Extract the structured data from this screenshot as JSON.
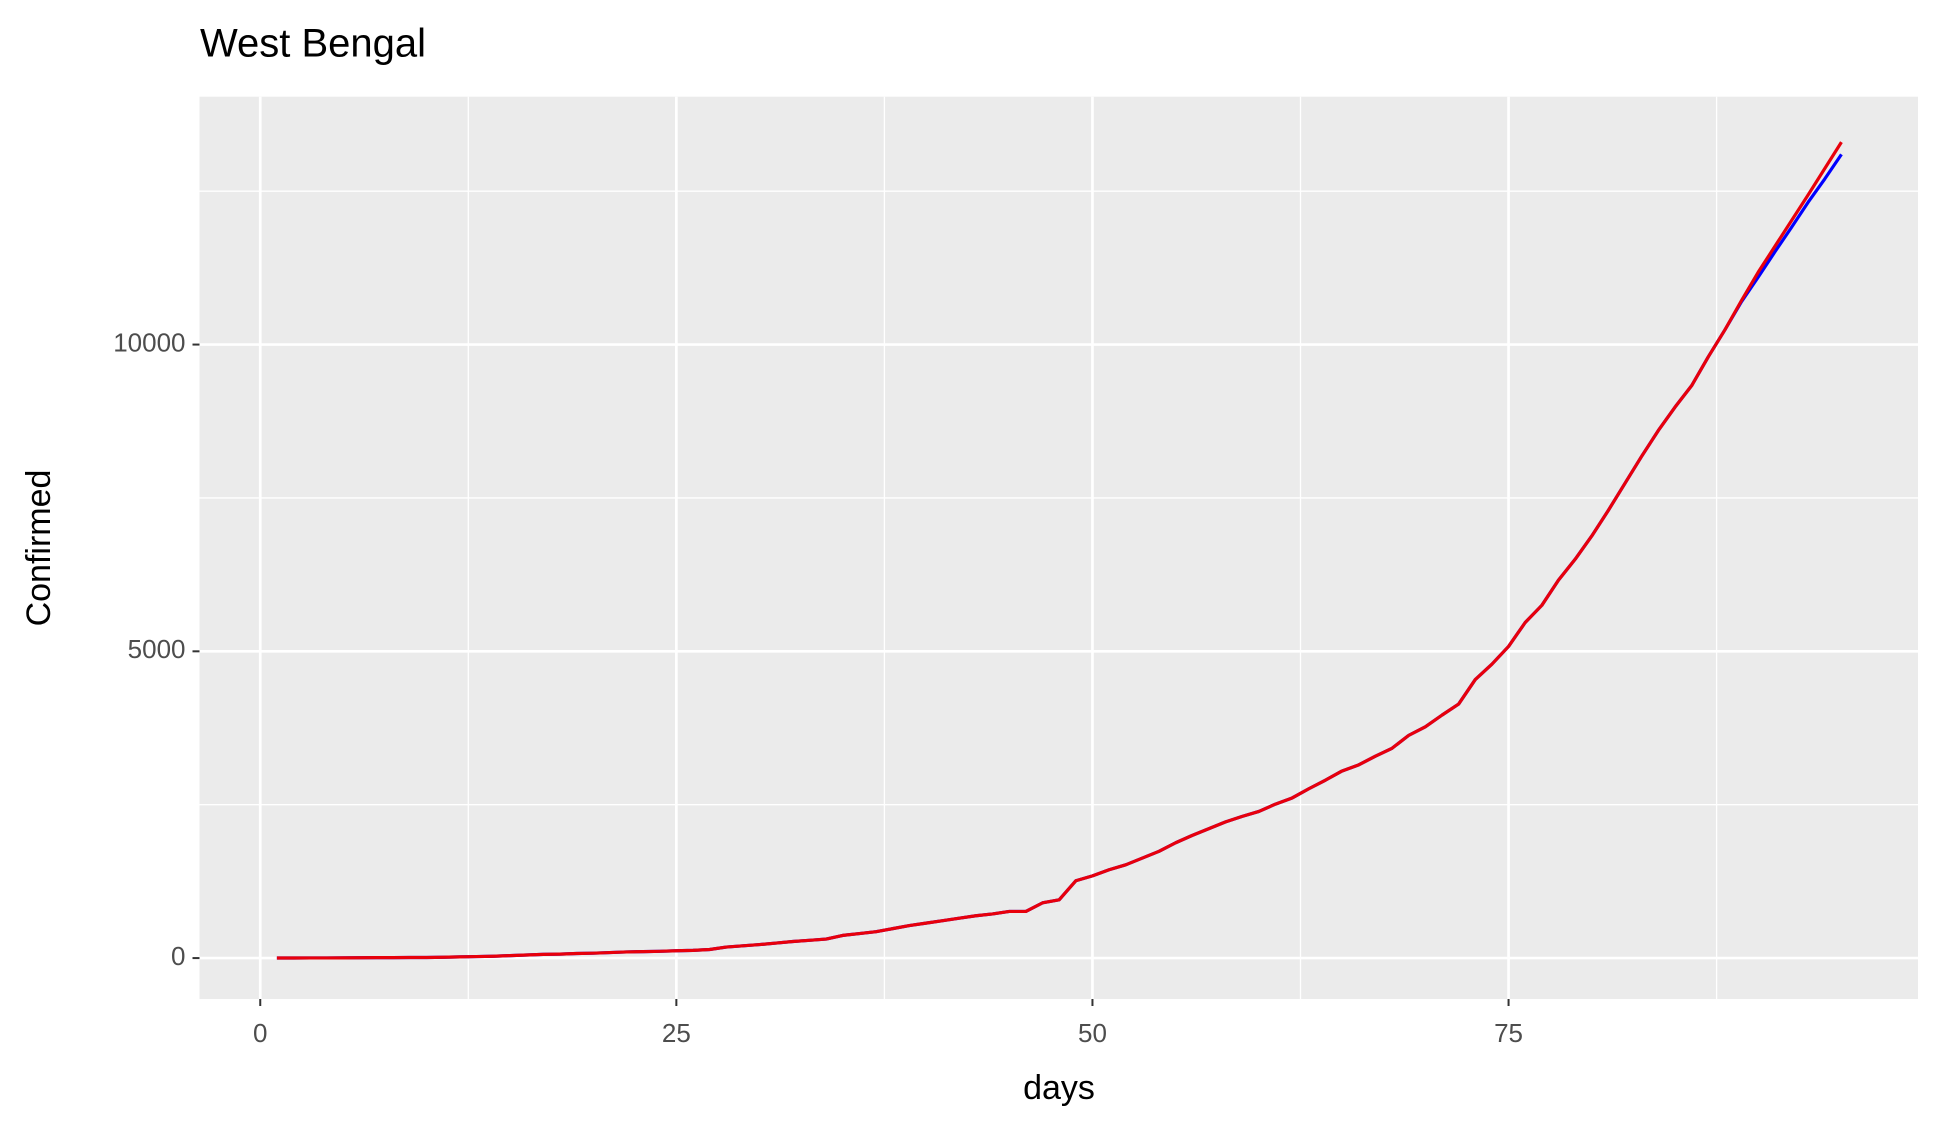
{
  "chart_data": {
    "type": "line",
    "title": "West Bengal",
    "x_label": "days",
    "y_label": "Confirmed",
    "x": [
      1,
      2,
      3,
      4,
      5,
      6,
      7,
      8,
      9,
      10,
      11,
      12,
      13,
      14,
      15,
      16,
      17,
      18,
      19,
      20,
      21,
      22,
      23,
      24,
      25,
      26,
      27,
      28,
      29,
      30,
      31,
      32,
      33,
      34,
      35,
      36,
      37,
      38,
      39,
      40,
      41,
      42,
      43,
      44,
      45,
      46,
      47,
      48,
      49,
      50,
      51,
      52,
      53,
      54,
      55,
      56,
      57,
      58,
      59,
      60,
      61,
      62,
      63,
      64,
      65,
      66,
      67,
      68,
      69,
      70,
      71,
      72,
      73,
      74,
      75,
      76,
      77,
      78,
      79,
      80,
      81,
      82,
      83,
      84,
      85,
      86,
      87,
      88,
      89,
      90,
      91,
      92,
      93,
      94,
      95
    ],
    "series": [
      {
        "color": "#0000ff",
        "values": [
          1,
          1,
          2,
          2,
          3,
          5,
          7,
          8,
          9,
          10,
          14,
          20,
          25,
          30,
          40,
          50,
          60,
          65,
          75,
          80,
          90,
          100,
          105,
          110,
          120,
          125,
          140,
          180,
          200,
          220,
          245,
          270,
          290,
          310,
          370,
          400,
          430,
          480,
          530,
          570,
          610,
          650,
          690,
          720,
          760,
          760,
          900,
          950,
          1260,
          1340,
          1440,
          1520,
          1630,
          1740,
          1880,
          2000,
          2110,
          2220,
          2310,
          2390,
          2510,
          2610,
          2760,
          2900,
          3050,
          3150,
          3290,
          3420,
          3630,
          3770,
          3960,
          4140,
          4540,
          4790,
          5080,
          5470,
          5750,
          6160,
          6500,
          6880,
          7300,
          7740,
          8180,
          8600,
          8980,
          9330,
          9800,
          10240,
          10700,
          11100,
          11510,
          11910,
          12320,
          12700,
          13100
        ]
      },
      {
        "color": "#e8000b",
        "values": [
          1,
          1,
          2,
          2,
          3,
          5,
          7,
          8,
          9,
          10,
          14,
          20,
          25,
          30,
          40,
          50,
          60,
          65,
          75,
          80,
          90,
          100,
          105,
          110,
          120,
          125,
          140,
          180,
          200,
          220,
          245,
          270,
          290,
          310,
          370,
          400,
          430,
          480,
          530,
          570,
          610,
          650,
          690,
          720,
          760,
          760,
          900,
          950,
          1260,
          1340,
          1440,
          1520,
          1630,
          1740,
          1880,
          2000,
          2110,
          2220,
          2310,
          2390,
          2510,
          2610,
          2760,
          2900,
          3050,
          3150,
          3290,
          3420,
          3630,
          3770,
          3960,
          4140,
          4540,
          4790,
          5080,
          5470,
          5750,
          6160,
          6500,
          6880,
          7300,
          7740,
          8180,
          8600,
          8980,
          9330,
          9800,
          10240,
          10720,
          11180,
          11600,
          12020,
          12440,
          12870,
          13300
        ]
      }
    ],
    "xlim": [
      -3.65,
      99.6
    ],
    "ylim": [
      -667,
      14040
    ],
    "xticks": [
      0,
      25,
      50,
      75
    ],
    "yticks": [
      0,
      5000,
      10000
    ],
    "x_minor_grid": [
      12.5,
      37.5,
      62.5,
      87.5
    ],
    "y_minor_grid": [
      2500,
      7500,
      12500
    ],
    "grid": true
  }
}
